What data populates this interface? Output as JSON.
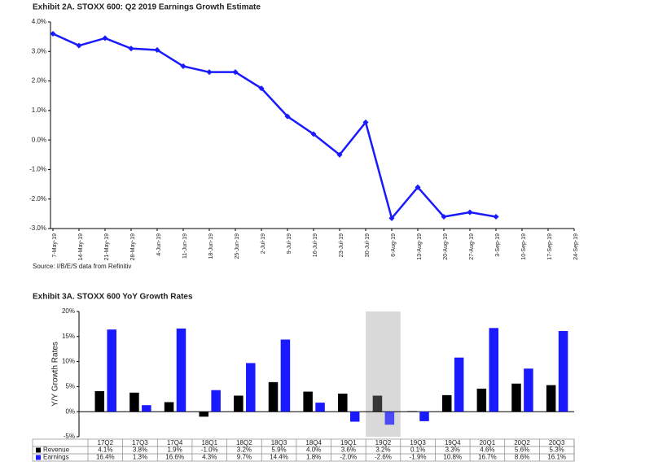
{
  "chart_data": [
    {
      "type": "line",
      "title": "Exhibit 2A.  STOXX 600: Q2 2019 Earnings Growth Estimate",
      "categories": [
        "7-May-19",
        "14-May-19",
        "21-May-19",
        "28-May-19",
        "4-Jun-19",
        "11-Jun-19",
        "18-Jun-19",
        "25-Jun-19",
        "2-Jul-19",
        "9-Jul-19",
        "16-Jul-19",
        "23-Jul-19",
        "30-Jul-19",
        "6-Aug-19",
        "13-Aug-19",
        "20-Aug-19",
        "27-Aug-19",
        "3-Sep-19",
        "10-Sep-19",
        "17-Sep-19",
        "24-Sep-19"
      ],
      "values": [
        3.6,
        3.2,
        3.45,
        3.1,
        3.05,
        2.5,
        2.3,
        2.3,
        1.75,
        0.8,
        0.2,
        -0.5,
        0.6,
        -2.65,
        -1.6,
        -2.6,
        -2.45,
        -2.6,
        null,
        null,
        null
      ],
      "color": "#1a1aff",
      "ylim": [
        -3,
        4
      ],
      "yticks": [
        {
          "value": 4,
          "label": "4.0%"
        },
        {
          "value": 3,
          "label": "3.0%"
        },
        {
          "value": 2,
          "label": "2.0%"
        },
        {
          "value": 1,
          "label": "1.0%"
        },
        {
          "value": 0,
          "label": "0.0%"
        },
        {
          "value": -1,
          "label": "-1.0%"
        },
        {
          "value": -2,
          "label": "-2.0%"
        },
        {
          "value": -3,
          "label": "-3.0%"
        }
      ],
      "source": "Source: I/B/E/S data from Refinitiv"
    },
    {
      "type": "bar",
      "title": "Exhibit 3A.  STOXX 600 YoY Growth Rates",
      "y_label": "Y/Y Growth Rates",
      "categories": [
        "17Q2",
        "17Q3",
        "17Q4",
        "18Q1",
        "18Q2",
        "18Q3",
        "18Q4",
        "19Q1",
        "19Q2",
        "19Q3",
        "19Q4",
        "20Q1",
        "20Q2",
        "20Q3"
      ],
      "series": [
        {
          "name": "Revenue",
          "color": "#000000",
          "values": [
            4.1,
            3.8,
            1.9,
            -1.0,
            3.2,
            5.9,
            4.0,
            3.6,
            3.2,
            0.1,
            3.3,
            4.6,
            5.6,
            5.3
          ],
          "value_labels": [
            "4.1%",
            "3.8%",
            "1.9%",
            "-1.0%",
            "3.2%",
            "5.9%",
            "4.0%",
            "3.6%",
            "3.2%",
            "0.1%",
            "3.3%",
            "4.6%",
            "5.6%",
            "5.3%"
          ]
        },
        {
          "name": "Earnings",
          "color": "#1a1aff",
          "values": [
            16.4,
            1.3,
            16.6,
            4.3,
            9.7,
            14.4,
            1.8,
            -2.0,
            -2.6,
            -1.9,
            10.8,
            16.7,
            8.6,
            16.1
          ],
          "value_labels": [
            "16.4%",
            "1.3%",
            "16.6%",
            "4.3%",
            "9.7%",
            "14.4%",
            "1.8%",
            "-2.0%",
            "-2.6%",
            "-1.9%",
            "10.8%",
            "16.7%",
            "8.6%",
            "16.1%"
          ]
        }
      ],
      "highlight": 8,
      "ylim": [
        -5,
        20
      ],
      "yticks": [
        {
          "value": 20,
          "label": "20%"
        },
        {
          "value": 15,
          "label": "15%"
        },
        {
          "value": 10,
          "label": "10%"
        },
        {
          "value": 5,
          "label": "5%"
        },
        {
          "value": 0,
          "label": "0%"
        },
        {
          "value": -5,
          "label": "-5%"
        }
      ]
    }
  ]
}
